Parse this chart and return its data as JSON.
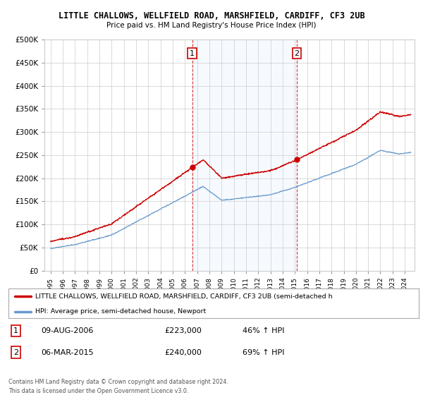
{
  "title": "LITTLE CHALLOWS, WELLFIELD ROAD, MARSHFIELD, CARDIFF, CF3 2UB",
  "subtitle": "Price paid vs. HM Land Registry's House Price Index (HPI)",
  "ylim": [
    0,
    500000
  ],
  "yticks": [
    0,
    50000,
    100000,
    150000,
    200000,
    250000,
    300000,
    350000,
    400000,
    450000,
    500000
  ],
  "ytick_labels": [
    "£0",
    "£50K",
    "£100K",
    "£150K",
    "£200K",
    "£250K",
    "£300K",
    "£350K",
    "£400K",
    "£450K",
    "£500K"
  ],
  "legend_line1": "LITTLE CHALLOWS, WELLFIELD ROAD, MARSHFIELD, CARDIFF, CF3 2UB (semi-detached h",
  "legend_line2": "HPI: Average price, semi-detached house, Newport",
  "point1_label": "1",
  "point1_date": "09-AUG-2006",
  "point1_price": "£223,000",
  "point1_hpi": "46% ↑ HPI",
  "point2_label": "2",
  "point2_date": "06-MAR-2015",
  "point2_price": "£240,000",
  "point2_hpi": "69% ↑ HPI",
  "footer": "Contains HM Land Registry data © Crown copyright and database right 2024.\nThis data is licensed under the Open Government Licence v3.0.",
  "red_color": "#cc0000",
  "blue_color": "#6699cc",
  "vline_color": "#cc0000",
  "span_color": "#ddeeff",
  "background_color": "#ffffff",
  "grid_color": "#cccccc",
  "point1_x_year": 2006.6,
  "point2_x_year": 2015.17,
  "point1_y": 223000,
  "point2_y": 240000,
  "x_start": 1995,
  "x_end": 2024.5,
  "xlim_left": 1994.5,
  "xlim_right": 2024.8
}
